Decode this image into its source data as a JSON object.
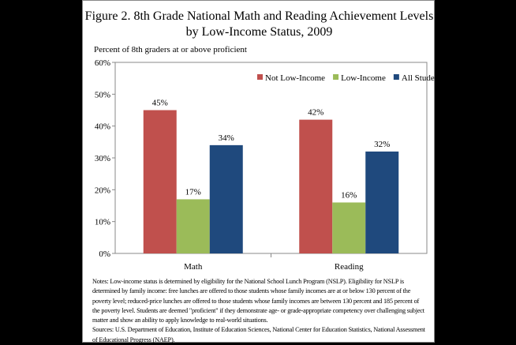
{
  "chart_data": {
    "type": "bar",
    "title_line1": "Figure 2. 8th Grade National Math and Reading Achievement Levels",
    "title_line2": "by Low-Income Status, 2009",
    "ylabel": "Percent of 8th graders at or above proficient",
    "xlabel": "",
    "ylim": [
      0,
      60
    ],
    "yticks": [
      "0%",
      "10%",
      "20%",
      "30%",
      "40%",
      "50%",
      "60%"
    ],
    "categories": [
      "Math",
      "Reading"
    ],
    "legend_position": "top-right",
    "series": [
      {
        "name": "Not Low-Income",
        "color": "#c0504d",
        "values": [
          45,
          42
        ],
        "labels": [
          "45%",
          "42%"
        ]
      },
      {
        "name": "Low-Income",
        "color": "#9bbb59",
        "values": [
          17,
          16
        ],
        "labels": [
          "17%",
          "16%"
        ]
      },
      {
        "name": "All Students",
        "color": "#1f497d",
        "values": [
          34,
          32
        ],
        "labels": [
          "34%",
          "32%"
        ]
      }
    ]
  },
  "notes": "Notes: Low-income status is determined by eligibility for the National School Lunch Program (NSLP). Eligibility for NSLP is determined by family income: free lunches are offered to those students whose family incomes are at or below 130 percent of the poverty level; reduced-price lunches are offered to those students whose family incomes are between 130 percent and 185 percent of the poverty level. Students are deemed \"proficient\" if they demonstrate age- or grade-appropriate competency over challenging subject matter and show an ability to apply knowledge to real-world situations.",
  "sources": "Sources: U.S. Department of Education, Institute of Education Sciences, National Center for Education Statistics, National Assessment of Educational Progress (NAEP)."
}
